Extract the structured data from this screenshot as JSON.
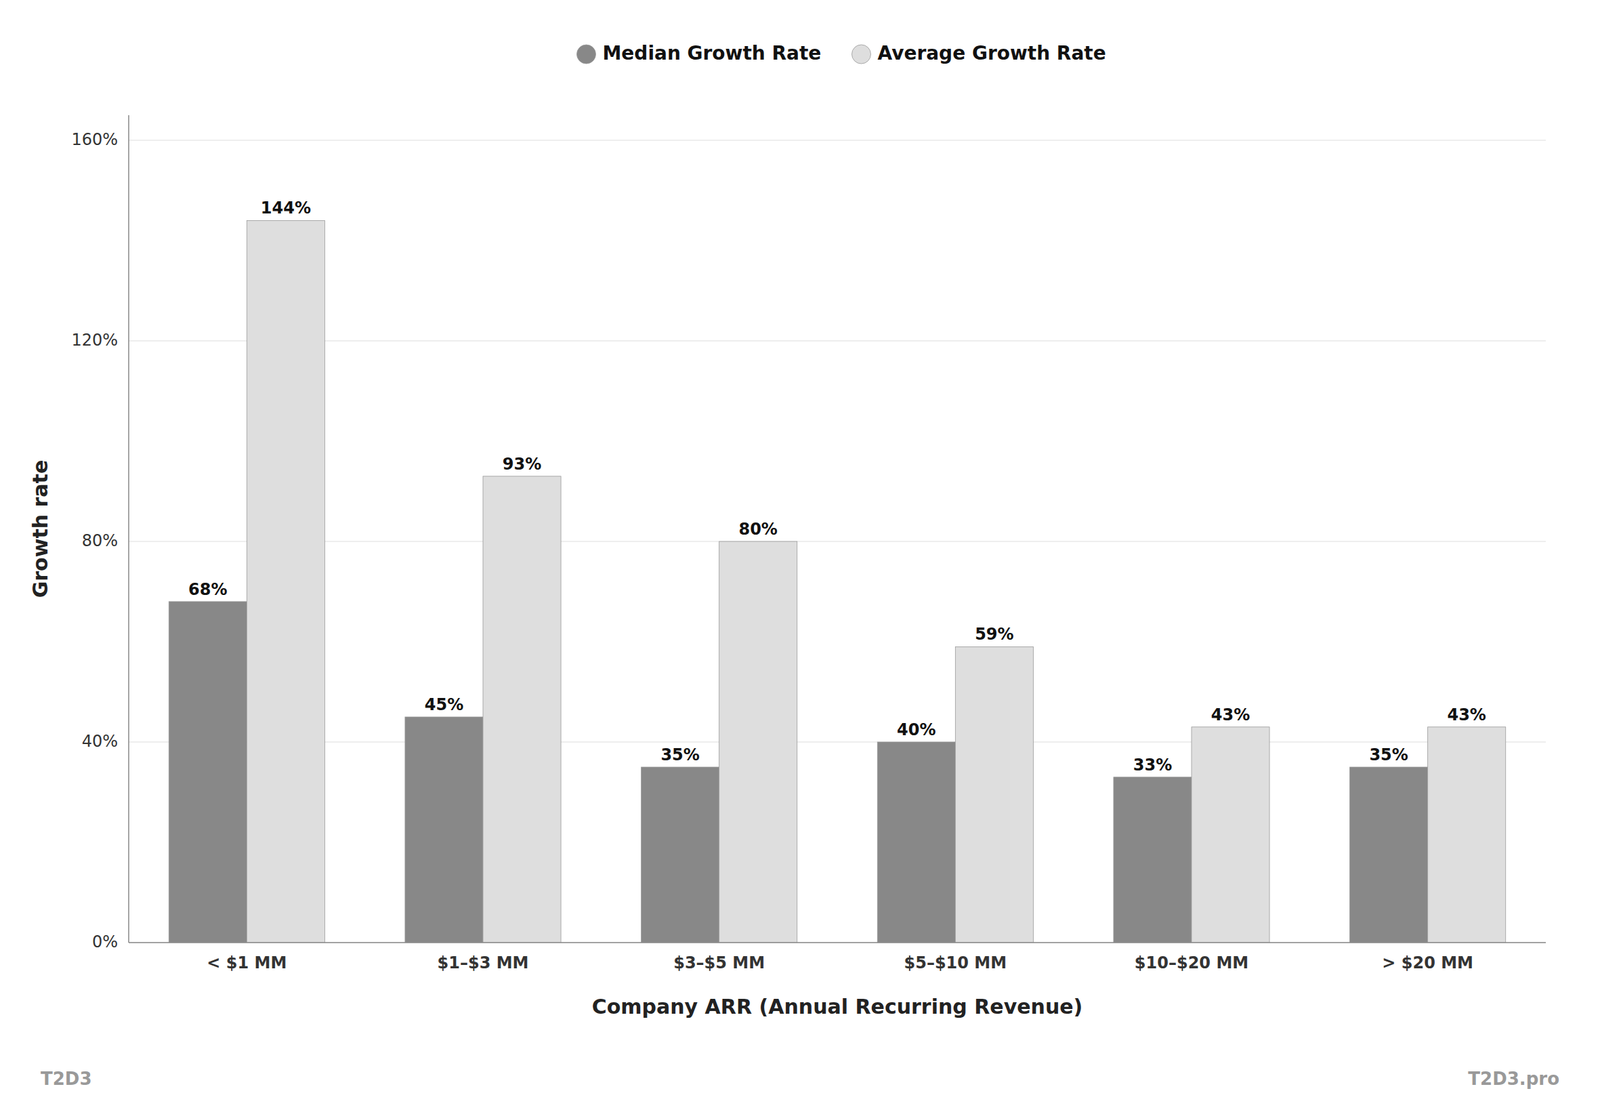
{
  "chart_data": {
    "type": "bar",
    "xlabel": "Company ARR (Annual Recurring Revenue)",
    "ylabel": "Growth rate",
    "categories": [
      "< $1 MM",
      "$1–$3 MM",
      "$3–$5 MM",
      "$5–$10 MM",
      "$10–$20 MM",
      "> $20 MM"
    ],
    "series": [
      {
        "name": "Median Growth Rate",
        "color": "#888888",
        "values": [
          68,
          45,
          35,
          40,
          33,
          35
        ],
        "value_labels": [
          "68%",
          "45%",
          "35%",
          "40%",
          "33%",
          "35%"
        ]
      },
      {
        "name": "Average Growth Rate",
        "color": "#dedede",
        "values": [
          144,
          93,
          80,
          59,
          43,
          43
        ],
        "value_labels": [
          "144%",
          "93%",
          "80%",
          "59%",
          "43%",
          "43%"
        ]
      }
    ],
    "ylim": [
      0,
      165
    ],
    "yticks": [
      {
        "value": 0,
        "label": "0%"
      },
      {
        "value": 40,
        "label": "40%"
      },
      {
        "value": 80,
        "label": "80%"
      },
      {
        "value": 120,
        "label": "120%"
      },
      {
        "value": 160,
        "label": "160%"
      }
    ],
    "grid": true,
    "legend": "top",
    "data_labels": true,
    "annotations": [
      "T2D3",
      "T2D3.pro"
    ]
  }
}
